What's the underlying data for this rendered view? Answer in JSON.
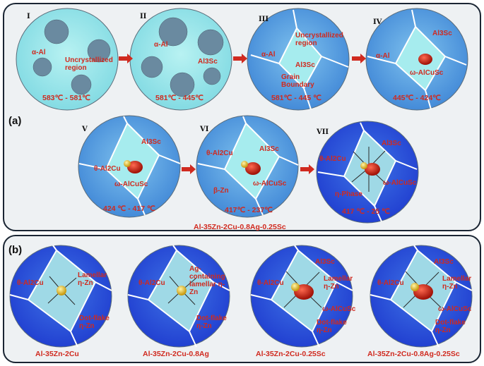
{
  "panel_a": {
    "label": "(a)",
    "caption": "Al-35Zn-2Cu-0.8Ag-0.25Sc",
    "stages": [
      {
        "roman": "I",
        "temp": "583℃ - 581℃",
        "labels": [
          "α-Al",
          "Uncrystallized region"
        ]
      },
      {
        "roman": "II",
        "temp": "581℃ - 445℃",
        "labels": [
          "α-Al",
          "Al3Sc"
        ]
      },
      {
        "roman": "III",
        "temp": "581℃ - 445 ℃",
        "labels": [
          "α-Al",
          "Uncrystallized region",
          "Al3Sc",
          "Grain Boundary"
        ]
      },
      {
        "roman": "IV",
        "temp": "445℃ - 424℃",
        "labels": [
          "α-Al",
          "Al3Sc",
          "ω-AlCuSc"
        ]
      },
      {
        "roman": "V",
        "temp": "424 ℃ - 417 ℃",
        "labels": [
          "Al3Sc",
          "θ-Al2Cu",
          "ω-AlCuSc"
        ]
      },
      {
        "roman": "VI",
        "temp": "417℃ - 237℃",
        "labels": [
          "θ-Al2Cu",
          "Al3Sc",
          "β-Zn",
          "ω-AlCuSc"
        ]
      },
      {
        "roman": "VII",
        "temp": "417 ℃ - 25 ℃",
        "labels": [
          "θ-Al2Cu",
          "Al3Sc",
          "ω-AlCuSc",
          "η-Phase"
        ]
      }
    ]
  },
  "panel_b": {
    "label": "(b)",
    "alloys": [
      {
        "caption": "Al-35Zn-2Cu",
        "labels": [
          "θ-Al2Cu",
          "Lamellar η-Zn",
          "Dot-flake η-Zn"
        ]
      },
      {
        "caption": "Al-35Zn-2Cu-0.8Ag",
        "labels": [
          "θ-Al2Cu",
          "Ag-containing lamellar η-Zn",
          "Dot-flake η-Zn"
        ]
      },
      {
        "caption": "Al-35Zn-2Cu-0.25Sc",
        "labels": [
          "θ-Al2Cu",
          "Al3Sc",
          "Lamellar η-Zn",
          "ω-AlCuSc",
          "Dot-flake η-Zn"
        ]
      },
      {
        "caption": "Al-35Zn-2Cu-0.8Ag-0.25Sc",
        "labels": [
          "θ-Al2Cu",
          "Al3Sc",
          "Lamellar η-Zn",
          "ω-AlCuSc",
          "Dot-flake η-Zn"
        ]
      }
    ]
  },
  "colors": {
    "accent_red": "#d02a1f",
    "liquid": "#8fe3e8",
    "solid_blue": "#3d7fe0",
    "deep_blue": "#2142d6",
    "border": "#1a2533"
  }
}
